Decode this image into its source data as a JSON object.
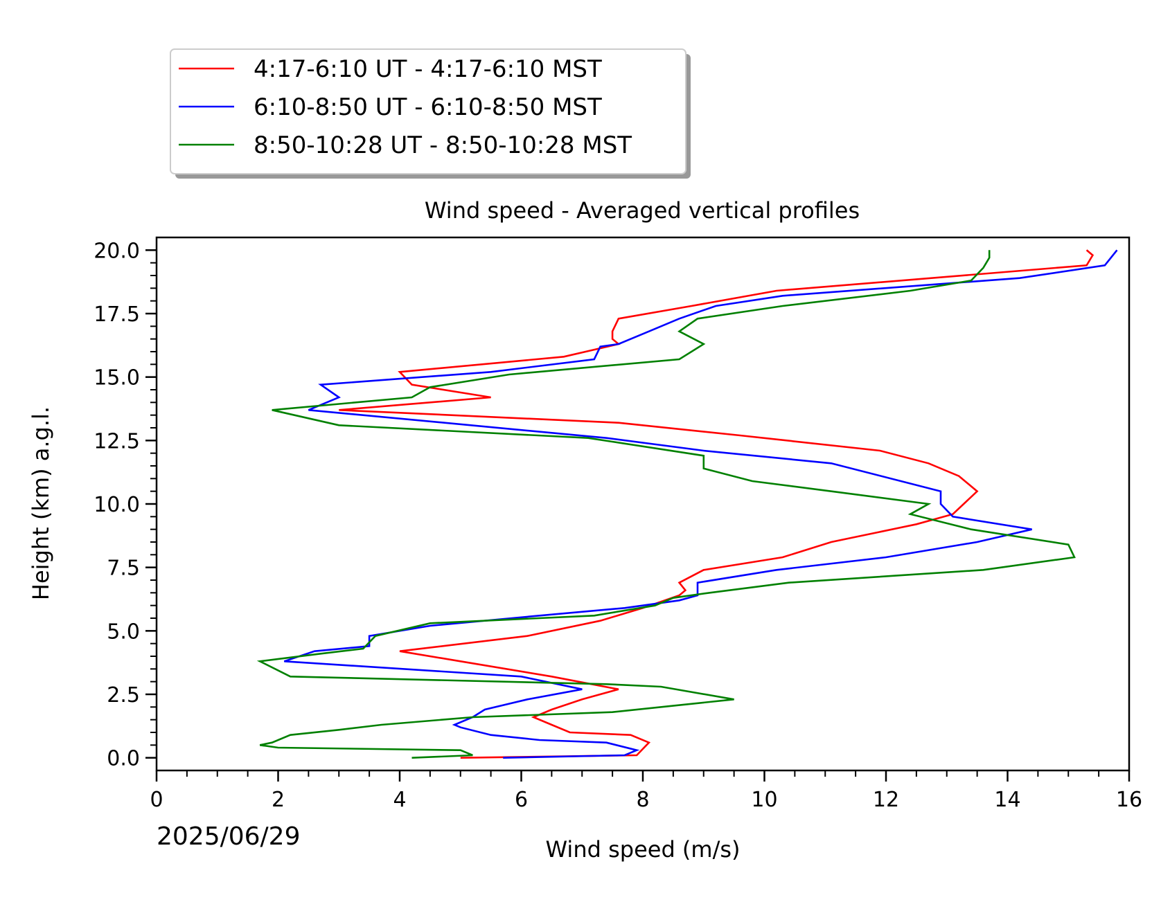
{
  "chart_data": {
    "type": "line",
    "title": "Wind speed - Averaged vertical profiles",
    "xlabel": "Wind speed (m/s)",
    "ylabel": "Height (km) a.g.l.",
    "date_label": "2025/06/29",
    "xlim": [
      0,
      16
    ],
    "ylim": [
      -0.5,
      20.5
    ],
    "xticks": [
      0,
      2,
      4,
      6,
      8,
      10,
      12,
      14,
      16
    ],
    "yticks": [
      0.0,
      2.5,
      5.0,
      7.5,
      10.0,
      12.5,
      15.0,
      17.5,
      20.0
    ],
    "ytick_labels": [
      "0.0",
      "2.5",
      "5.0",
      "7.5",
      "10.0",
      "12.5",
      "15.0",
      "17.5",
      "20.0"
    ],
    "grid": false,
    "legend_position": "above-left",
    "series": [
      {
        "name": "4:17-6:10 UT - 4:17-6:10 MST",
        "color": "#ff0000",
        "points": [
          [
            5.0,
            0.0
          ],
          [
            7.9,
            0.1
          ],
          [
            8.1,
            0.6
          ],
          [
            7.8,
            0.9
          ],
          [
            6.8,
            1.0
          ],
          [
            6.5,
            1.3
          ],
          [
            6.2,
            1.6
          ],
          [
            6.5,
            1.9
          ],
          [
            7.0,
            2.3
          ],
          [
            7.6,
            2.7
          ],
          [
            6.5,
            3.2
          ],
          [
            5.0,
            3.8
          ],
          [
            4.0,
            4.2
          ],
          [
            6.1,
            4.8
          ],
          [
            7.3,
            5.4
          ],
          [
            8.0,
            5.9
          ],
          [
            8.6,
            6.4
          ],
          [
            8.7,
            6.6
          ],
          [
            8.6,
            6.9
          ],
          [
            9.0,
            7.4
          ],
          [
            10.3,
            7.9
          ],
          [
            11.1,
            8.5
          ],
          [
            12.5,
            9.2
          ],
          [
            13.1,
            9.6
          ],
          [
            13.5,
            10.5
          ],
          [
            13.2,
            11.1
          ],
          [
            12.7,
            11.6
          ],
          [
            11.9,
            12.1
          ],
          [
            9.6,
            12.7
          ],
          [
            7.6,
            13.2
          ],
          [
            3.0,
            13.7
          ],
          [
            5.5,
            14.2
          ],
          [
            4.2,
            14.7
          ],
          [
            4.0,
            15.2
          ],
          [
            6.7,
            15.8
          ],
          [
            7.6,
            16.3
          ],
          [
            7.5,
            16.5
          ],
          [
            7.5,
            16.8
          ],
          [
            7.6,
            17.3
          ],
          [
            8.8,
            17.8
          ],
          [
            10.2,
            18.4
          ],
          [
            15.3,
            19.4
          ],
          [
            15.4,
            19.8
          ],
          [
            15.3,
            20.0
          ]
        ]
      },
      {
        "name": "6:10-8:50 UT - 6:10-8:50 MST",
        "color": "#0000ff",
        "points": [
          [
            5.7,
            0.0
          ],
          [
            7.7,
            0.1
          ],
          [
            7.9,
            0.3
          ],
          [
            7.4,
            0.6
          ],
          [
            6.3,
            0.7
          ],
          [
            5.5,
            0.9
          ],
          [
            5.0,
            1.2
          ],
          [
            4.9,
            1.3
          ],
          [
            5.2,
            1.6
          ],
          [
            5.4,
            1.9
          ],
          [
            6.1,
            2.3
          ],
          [
            7.0,
            2.7
          ],
          [
            6.0,
            3.2
          ],
          [
            2.1,
            3.8
          ],
          [
            2.6,
            4.2
          ],
          [
            3.5,
            4.4
          ],
          [
            3.5,
            4.8
          ],
          [
            4.5,
            5.2
          ],
          [
            6.3,
            5.6
          ],
          [
            7.7,
            5.9
          ],
          [
            8.6,
            6.2
          ],
          [
            8.9,
            6.4
          ],
          [
            8.9,
            6.9
          ],
          [
            10.2,
            7.4
          ],
          [
            12.0,
            7.9
          ],
          [
            13.5,
            8.5
          ],
          [
            14.4,
            9.0
          ],
          [
            13.1,
            9.5
          ],
          [
            12.9,
            10.0
          ],
          [
            12.9,
            10.5
          ],
          [
            11.1,
            11.6
          ],
          [
            9.0,
            12.1
          ],
          [
            7.4,
            12.6
          ],
          [
            2.5,
            13.7
          ],
          [
            3.0,
            14.2
          ],
          [
            2.7,
            14.7
          ],
          [
            5.5,
            15.2
          ],
          [
            7.2,
            15.7
          ],
          [
            7.3,
            16.2
          ],
          [
            7.6,
            16.3
          ],
          [
            8.1,
            16.8
          ],
          [
            8.6,
            17.3
          ],
          [
            9.2,
            17.8
          ],
          [
            10.3,
            18.2
          ],
          [
            14.2,
            18.9
          ],
          [
            15.6,
            19.4
          ],
          [
            15.8,
            20.0
          ]
        ]
      },
      {
        "name": "8:50-10:28 UT - 8:50-10:28 MST",
        "color": "#008000",
        "points": [
          [
            4.2,
            0.0
          ],
          [
            5.2,
            0.1
          ],
          [
            5.0,
            0.3
          ],
          [
            2.0,
            0.4
          ],
          [
            1.7,
            0.5
          ],
          [
            1.9,
            0.6
          ],
          [
            2.2,
            0.9
          ],
          [
            3.0,
            1.1
          ],
          [
            3.7,
            1.3
          ],
          [
            5.2,
            1.6
          ],
          [
            7.5,
            1.8
          ],
          [
            9.5,
            2.3
          ],
          [
            8.3,
            2.8
          ],
          [
            7.4,
            2.9
          ],
          [
            2.2,
            3.2
          ],
          [
            1.7,
            3.8
          ],
          [
            2.7,
            4.1
          ],
          [
            3.4,
            4.3
          ],
          [
            3.6,
            4.8
          ],
          [
            4.5,
            5.3
          ],
          [
            7.2,
            5.6
          ],
          [
            8.2,
            6.0
          ],
          [
            8.5,
            6.3
          ],
          [
            9.1,
            6.5
          ],
          [
            10.4,
            6.9
          ],
          [
            13.6,
            7.4
          ],
          [
            15.1,
            7.9
          ],
          [
            15.0,
            8.4
          ],
          [
            13.4,
            9.0
          ],
          [
            12.4,
            9.6
          ],
          [
            12.7,
            10.0
          ],
          [
            11.1,
            10.5
          ],
          [
            9.8,
            10.9
          ],
          [
            9.0,
            11.4
          ],
          [
            9.0,
            11.9
          ],
          [
            7.1,
            12.6
          ],
          [
            3.0,
            13.1
          ],
          [
            1.9,
            13.7
          ],
          [
            4.2,
            14.2
          ],
          [
            4.5,
            14.6
          ],
          [
            5.8,
            15.1
          ],
          [
            8.6,
            15.7
          ],
          [
            9.0,
            16.3
          ],
          [
            8.6,
            16.8
          ],
          [
            8.9,
            17.3
          ],
          [
            10.3,
            17.8
          ],
          [
            12.4,
            18.4
          ],
          [
            13.4,
            18.8
          ],
          [
            13.6,
            19.3
          ],
          [
            13.7,
            19.7
          ],
          [
            13.7,
            20.0
          ]
        ]
      }
    ]
  }
}
